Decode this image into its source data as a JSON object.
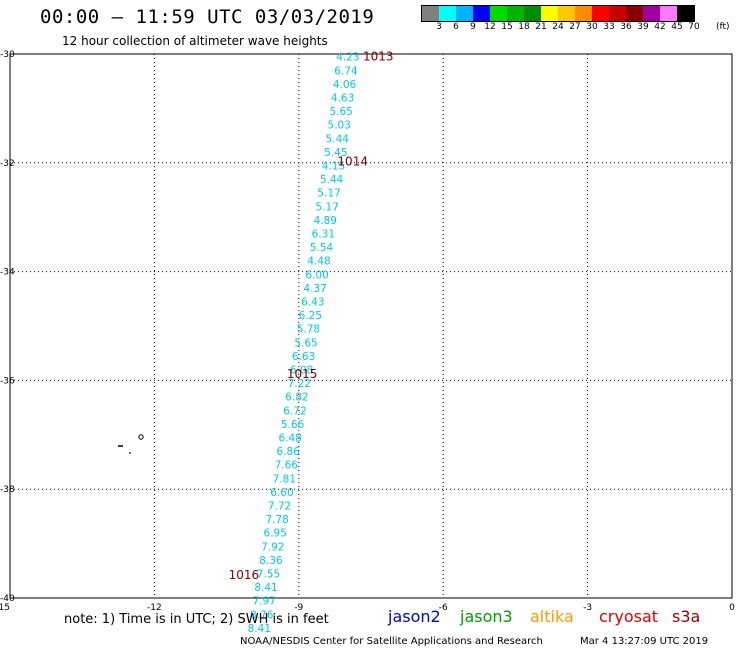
{
  "header": {
    "title": "00:00 – 11:59 UTC 03/03/2019",
    "subtitle": "12 hour collection of altimeter wave heights"
  },
  "scale": {
    "colors": [
      "#808080",
      "#00ffff",
      "#00b4ff",
      "#0000ff",
      "#00dc00",
      "#00b400",
      "#008c00",
      "#ffff00",
      "#ffc800",
      "#ff8c00",
      "#ff0000",
      "#c80000",
      "#8c0000",
      "#a000a0",
      "#ff78ff",
      "#000000"
    ],
    "labels": [
      "3",
      "6",
      "9",
      "12",
      "15",
      "18",
      "21",
      "24",
      "27",
      "30",
      "33",
      "36",
      "39",
      "42",
      "45",
      "70"
    ],
    "unit": "(ft)"
  },
  "map": {
    "lon_ticks": [
      "-15",
      "-12",
      "-9",
      "-6",
      "-3",
      "0"
    ],
    "lat_ticks": [
      "-30",
      "-32",
      "-34",
      "-36",
      "-38",
      "-40"
    ]
  },
  "wave_heights": [
    {
      "lon": -7.98,
      "lat": -30.05,
      "value": "4.23"
    },
    {
      "lon": -8.02,
      "lat": -30.3,
      "value": "6.74"
    },
    {
      "lon": -8.05,
      "lat": -30.55,
      "value": "4.06"
    },
    {
      "lon": -8.09,
      "lat": -30.8,
      "value": "4.63"
    },
    {
      "lon": -8.12,
      "lat": -31.05,
      "value": "5.65"
    },
    {
      "lon": -8.16,
      "lat": -31.3,
      "value": "5.03"
    },
    {
      "lon": -8.2,
      "lat": -31.55,
      "value": "5.44"
    },
    {
      "lon": -8.23,
      "lat": -31.8,
      "value": "5.45"
    },
    {
      "lon": -8.28,
      "lat": -32.05,
      "value": "4.15"
    },
    {
      "lon": -8.32,
      "lat": -32.3,
      "value": "5.44"
    },
    {
      "lon": -8.37,
      "lat": -32.55,
      "value": "5.17"
    },
    {
      "lon": -8.41,
      "lat": -32.8,
      "value": "5.17"
    },
    {
      "lon": -8.45,
      "lat": -33.05,
      "value": "4.89"
    },
    {
      "lon": -8.49,
      "lat": -33.3,
      "value": "6.31"
    },
    {
      "lon": -8.53,
      "lat": -33.55,
      "value": "5.54"
    },
    {
      "lon": -8.58,
      "lat": -33.8,
      "value": "4.48"
    },
    {
      "lon": -8.62,
      "lat": -34.05,
      "value": "6.00"
    },
    {
      "lon": -8.66,
      "lat": -34.3,
      "value": "4.37"
    },
    {
      "lon": -8.71,
      "lat": -34.55,
      "value": "6.43"
    },
    {
      "lon": -8.76,
      "lat": -34.8,
      "value": "6.25"
    },
    {
      "lon": -8.8,
      "lat": -35.05,
      "value": "5.78"
    },
    {
      "lon": -8.85,
      "lat": -35.3,
      "value": "5.65"
    },
    {
      "lon": -8.9,
      "lat": -35.55,
      "value": "6.63"
    },
    {
      "lon": -8.94,
      "lat": -35.8,
      "value": "6.08"
    },
    {
      "lon": -8.99,
      "lat": -36.05,
      "value": "7.22"
    },
    {
      "lon": -9.04,
      "lat": -36.3,
      "value": "6.82"
    },
    {
      "lon": -9.08,
      "lat": -36.55,
      "value": "6.72"
    },
    {
      "lon": -9.13,
      "lat": -36.8,
      "value": "5.66"
    },
    {
      "lon": -9.18,
      "lat": -37.05,
      "value": "6.48"
    },
    {
      "lon": -9.22,
      "lat": -37.3,
      "value": "6.86"
    },
    {
      "lon": -9.26,
      "lat": -37.55,
      "value": "7.66"
    },
    {
      "lon": -9.3,
      "lat": -37.8,
      "value": "7.81"
    },
    {
      "lon": -9.35,
      "lat": -38.05,
      "value": "6.60"
    },
    {
      "lon": -9.4,
      "lat": -38.3,
      "value": "7.72"
    },
    {
      "lon": -9.45,
      "lat": -38.55,
      "value": "7.78"
    },
    {
      "lon": -9.49,
      "lat": -38.8,
      "value": "6.95"
    },
    {
      "lon": -9.54,
      "lat": -39.05,
      "value": "7.92"
    },
    {
      "lon": -9.58,
      "lat": -39.3,
      "value": "8.36"
    },
    {
      "lon": -9.63,
      "lat": -39.55,
      "value": "7.55"
    },
    {
      "lon": -9.68,
      "lat": -39.8,
      "value": "8.41"
    },
    {
      "lon": -9.72,
      "lat": -40.05,
      "value": "7.97"
    },
    {
      "lon": -9.77,
      "lat": -40.3,
      "value": "8.76"
    },
    {
      "lon": -9.82,
      "lat": -40.55,
      "value": "8.41"
    }
  ],
  "pressure_labels": [
    {
      "lon": -7.35,
      "lat": -30.05,
      "value": "1013"
    },
    {
      "lon": -7.88,
      "lat": -31.98,
      "value": "1014"
    },
    {
      "lon": -8.93,
      "lat": -35.88,
      "value": "1015"
    },
    {
      "lon": -10.14,
      "lat": -39.58,
      "value": "1016"
    }
  ],
  "footer": {
    "note": "note: 1) Time is in UTC; 2) SWH is in feet",
    "satellites": [
      {
        "name": "jason2",
        "color": "#0000e6"
      },
      {
        "name": "jason3",
        "color": "#00a000"
      },
      {
        "name": "altika",
        "color": "#ff9a00"
      },
      {
        "name": "cryosat",
        "color": "#e60000"
      },
      {
        "name": "s3a",
        "color": "#a00000"
      }
    ],
    "credit": "NOAA/NESDIS Center for Satellite Applications and Research",
    "timestamp": "Mar  4 13:27:09 UTC 2019"
  }
}
